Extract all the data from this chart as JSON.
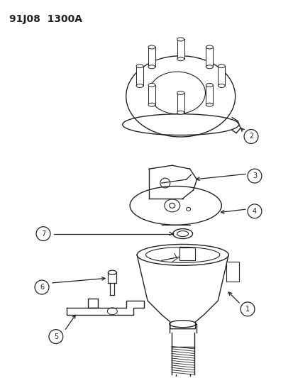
{
  "title": "91J08  1300A",
  "title_fontsize": 10,
  "background_color": "#ffffff",
  "fig_width": 4.14,
  "fig_height": 5.33,
  "dpi": 100,
  "line_color": "#222222"
}
